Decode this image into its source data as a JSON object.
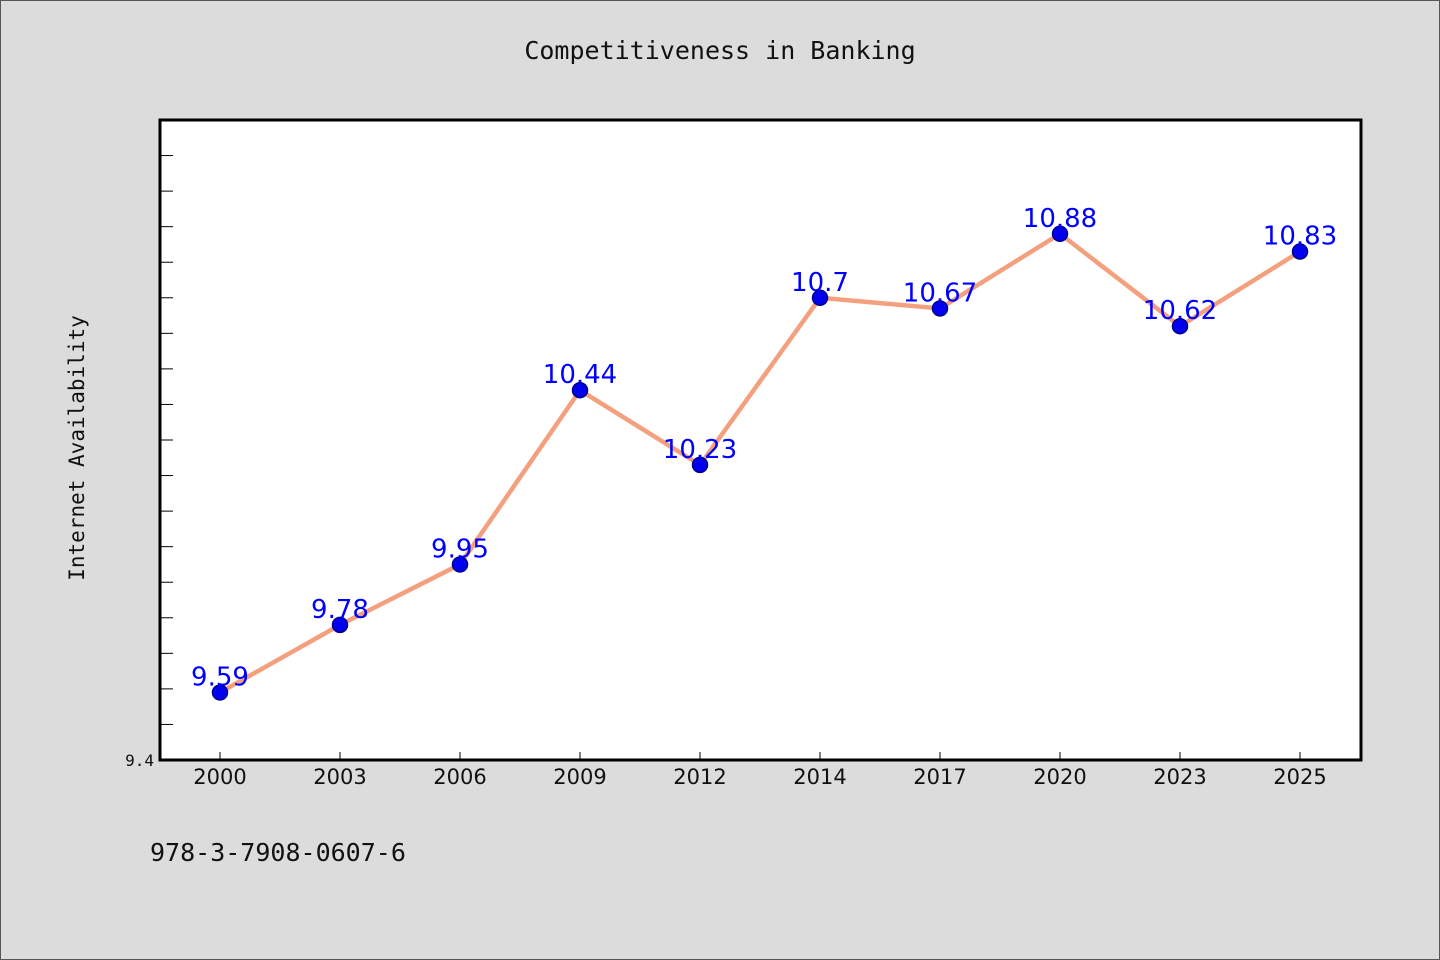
{
  "chart_data": {
    "type": "line",
    "title": "Competitiveness in Banking",
    "xlabel": "",
    "ylabel": "Internet Availability",
    "categories": [
      "2000",
      "2003",
      "2006",
      "2009",
      "2012",
      "2014",
      "2017",
      "2020",
      "2023",
      "2025"
    ],
    "series": [
      {
        "values": [
          9.59,
          9.78,
          9.95,
          10.44,
          10.23,
          10.7,
          10.67,
          10.88,
          10.62,
          10.83
        ]
      }
    ],
    "ylim": [
      9.4,
      11.2
    ],
    "ytick_labels": [
      "9.4"
    ],
    "grid": false,
    "colors": {
      "line": "#f4a07f",
      "marker": "#0000ee",
      "data_label": "#0000ff"
    }
  },
  "footer_text": "978-3-7908-0607-6"
}
